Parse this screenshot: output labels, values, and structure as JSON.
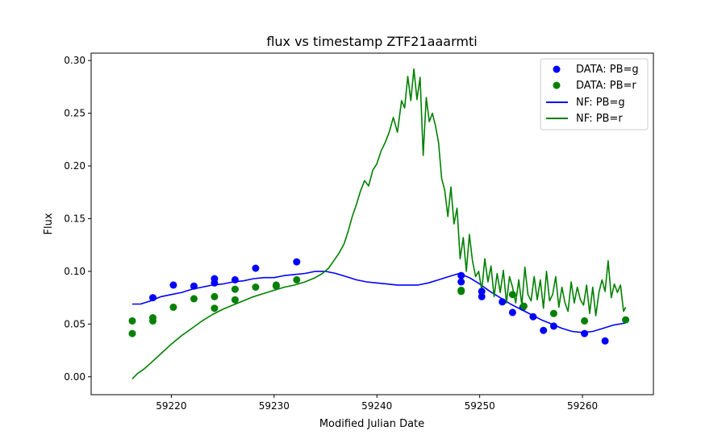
{
  "chart_data": {
    "type": "scatter",
    "title": "flux vs timestamp ZTF21aaarmti",
    "xlabel": "Modified Julian Date",
    "ylabel": "Flux",
    "xlim": [
      59212.2,
      59266.9
    ],
    "ylim": [
      -0.017,
      0.307
    ],
    "xticks": [
      59220,
      59230,
      59240,
      59250,
      59260
    ],
    "yticks": [
      0.0,
      0.05,
      0.1,
      0.15,
      0.2,
      0.25,
      0.3
    ],
    "xtick_labels": [
      "59220",
      "59230",
      "59240",
      "59250",
      "59260"
    ],
    "ytick_labels": [
      "0.00",
      "0.05",
      "0.10",
      "0.15",
      "0.20",
      "0.25",
      "0.30"
    ],
    "grid": false,
    "legend_position": "top-right",
    "legend": [
      "DATA: PB=g",
      "DATA: PB=r",
      "NF: PB=g",
      "NF: PB=r"
    ],
    "colors": {
      "g": "#0000ff",
      "r": "#008000"
    },
    "series": [
      {
        "name": "DATA: PB=g",
        "kind": "scatter",
        "color": "#0000ff",
        "x": [
          59218.2,
          59220.2,
          59222.2,
          59224.2,
          59224.2,
          59226.2,
          59228.2,
          59232.2,
          59248.2,
          59248.2,
          59250.2,
          59250.2,
          59252.2,
          59253.2,
          59254.2,
          59255.2,
          59256.2,
          59257.2,
          59260.2,
          59262.2
        ],
        "y": [
          0.075,
          0.087,
          0.086,
          0.093,
          0.089,
          0.092,
          0.103,
          0.109,
          0.096,
          0.09,
          0.081,
          0.076,
          0.071,
          0.061,
          0.066,
          0.057,
          0.044,
          0.048,
          0.041,
          0.034
        ]
      },
      {
        "name": "DATA: PB=r",
        "kind": "scatter",
        "color": "#008000",
        "x": [
          59216.2,
          59216.2,
          59218.2,
          59218.2,
          59220.2,
          59222.2,
          59224.2,
          59224.2,
          59226.2,
          59226.2,
          59228.2,
          59230.2,
          59230.2,
          59232.2,
          59248.2,
          59248.2,
          59253.2,
          59254.3,
          59257.2,
          59260.2,
          59264.2
        ],
        "y": [
          0.053,
          0.041,
          0.056,
          0.053,
          0.066,
          0.074,
          0.076,
          0.065,
          0.083,
          0.073,
          0.085,
          0.087,
          0.086,
          0.092,
          0.082,
          0.081,
          0.078,
          0.067,
          0.06,
          0.053,
          0.054
        ]
      },
      {
        "name": "NF: PB=g",
        "kind": "line",
        "color": "#0000ff",
        "x": [
          59216.2,
          59217,
          59218,
          59219,
          59220,
          59221,
          59222,
          59223,
          59224,
          59225,
          59226,
          59227,
          59228,
          59229,
          59230,
          59231,
          59232,
          59233,
          59234,
          59235,
          59236,
          59237,
          59238,
          59239,
          59240,
          59241,
          59242,
          59243,
          59244,
          59245,
          59246,
          59247,
          59248,
          59249,
          59250,
          59251,
          59252,
          59253,
          59254,
          59255,
          59256,
          59257,
          59258,
          59259,
          59260,
          59261,
          59262,
          59263,
          59264.2
        ],
        "y": [
          0.069,
          0.069,
          0.072,
          0.076,
          0.078,
          0.08,
          0.083,
          0.085,
          0.087,
          0.088,
          0.09,
          0.091,
          0.093,
          0.094,
          0.094,
          0.096,
          0.097,
          0.098,
          0.1,
          0.1,
          0.098,
          0.095,
          0.092,
          0.09,
          0.089,
          0.088,
          0.087,
          0.087,
          0.087,
          0.089,
          0.092,
          0.095,
          0.098,
          0.094,
          0.088,
          0.081,
          0.075,
          0.069,
          0.064,
          0.059,
          0.054,
          0.05,
          0.046,
          0.043,
          0.042,
          0.043,
          0.046,
          0.049,
          0.051
        ]
      },
      {
        "name": "NF: PB=r",
        "kind": "line",
        "color": "#008000",
        "x": [
          59216.2,
          59216.7,
          59217.3,
          59218,
          59219,
          59220,
          59221,
          59222,
          59223,
          59224,
          59225,
          59226,
          59227,
          59228,
          59229,
          59230,
          59231,
          59232,
          59233,
          59234,
          59234.7,
          59235.3,
          59235.8,
          59236.3,
          59236.8,
          59237.2,
          59237.6,
          59238,
          59238.4,
          59238.8,
          59239.2,
          59239.6,
          59240,
          59240.4,
          59240.8,
          59241.2,
          59241.6,
          59242,
          59242.4,
          59242.7,
          59243,
          59243.3,
          59243.6,
          59243.9,
          59244.2,
          59244.5,
          59244.8,
          59245.1,
          59245.4,
          59245.7,
          59246,
          59246.3,
          59246.6,
          59246.9,
          59247.2,
          59247.5,
          59247.8,
          59248.1,
          59248.4,
          59248.7,
          59249,
          59249.3,
          59249.6,
          59249.9,
          59250.2,
          59250.5,
          59250.8,
          59251.1,
          59251.4,
          59251.7,
          59252,
          59252.3,
          59252.6,
          59252.9,
          59253.2,
          59253.5,
          59253.8,
          59254.1,
          59254.4,
          59254.7,
          59255,
          59255.3,
          59255.6,
          59255.9,
          59256.2,
          59256.5,
          59256.8,
          59257.1,
          59257.4,
          59257.7,
          59258,
          59258.3,
          59258.6,
          59258.9,
          59259.2,
          59259.5,
          59259.8,
          59260.1,
          59260.4,
          59260.7,
          59261,
          59261.3,
          59261.6,
          59261.9,
          59262.2,
          59262.5,
          59262.8,
          59263.1,
          59263.4,
          59263.7,
          59264,
          59264.2
        ],
        "y": [
          -0.002,
          0.003,
          0.007,
          0.013,
          0.022,
          0.031,
          0.039,
          0.046,
          0.053,
          0.059,
          0.064,
          0.068,
          0.072,
          0.076,
          0.079,
          0.082,
          0.085,
          0.087,
          0.09,
          0.094,
          0.098,
          0.103,
          0.11,
          0.117,
          0.126,
          0.138,
          0.152,
          0.163,
          0.176,
          0.186,
          0.181,
          0.196,
          0.202,
          0.214,
          0.222,
          0.232,
          0.246,
          0.232,
          0.262,
          0.255,
          0.285,
          0.262,
          0.292,
          0.263,
          0.284,
          0.21,
          0.265,
          0.242,
          0.25,
          0.238,
          0.222,
          0.188,
          0.177,
          0.152,
          0.18,
          0.145,
          0.16,
          0.112,
          0.132,
          0.1,
          0.135,
          0.11,
          0.095,
          0.1,
          0.082,
          0.112,
          0.09,
          0.105,
          0.076,
          0.098,
          0.08,
          0.101,
          0.07,
          0.095,
          0.085,
          0.07,
          0.092,
          0.068,
          0.104,
          0.078,
          0.072,
          0.095,
          0.073,
          0.092,
          0.065,
          0.1,
          0.072,
          0.078,
          0.095,
          0.066,
          0.085,
          0.07,
          0.062,
          0.09,
          0.07,
          0.085,
          0.073,
          0.068,
          0.087,
          0.06,
          0.085,
          0.058,
          0.08,
          0.092,
          0.081,
          0.11,
          0.075,
          0.088,
          0.08,
          0.087,
          0.062,
          0.066
        ]
      }
    ]
  }
}
